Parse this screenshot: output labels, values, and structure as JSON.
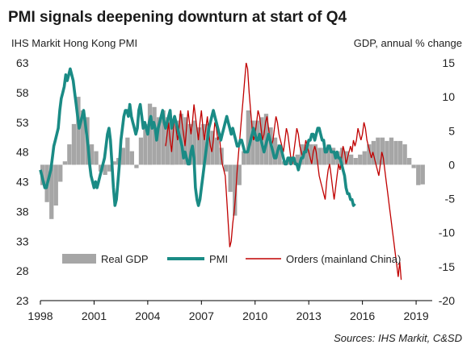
{
  "chart_data": {
    "type": "line",
    "title": "PMI signals deepening downturn at start of Q4",
    "left_axis_label": "IHS Markit Hong Kong PMI",
    "right_axis_label": "GDP, annual % change",
    "source": "Sources:  IHS Markit, C&SD",
    "y_left": {
      "min": 23,
      "max": 63,
      "ticks": [
        "23",
        "28",
        "33",
        "38",
        "43",
        "48",
        "53",
        "58",
        "63"
      ]
    },
    "y_right": {
      "min": -20,
      "max": 15,
      "ticks": [
        "-20",
        "-15",
        "-10",
        "-5",
        "0",
        "5",
        "10",
        "15"
      ]
    },
    "x_ticks": [
      "1998",
      "2001",
      "2004",
      "2007",
      "2010",
      "2013",
      "2016",
      "2019"
    ],
    "x_range": [
      1998.0,
      2019.9
    ],
    "legend": [
      {
        "name": "Real GDP",
        "color": "#a6a6a6"
      },
      {
        "name": "PMI",
        "color": "#1a8b85"
      },
      {
        "name": "Orders (mainland China)",
        "color": "#c00000"
      }
    ],
    "gdp_quarterly_yoy": {
      "start": 1998.0,
      "step": 0.25,
      "values": [
        -3,
        -5.5,
        -8,
        -6,
        -2.5,
        0.5,
        3,
        6,
        10,
        8,
        7,
        3,
        2,
        -1,
        -1.5,
        -1,
        0.5,
        1,
        2.5,
        4,
        2,
        -0.5,
        4,
        6,
        9,
        8.5,
        7,
        8,
        7,
        6,
        6.5,
        7.5,
        7,
        6,
        6.5,
        5.5,
        6,
        6,
        5,
        4,
        2.5,
        -1,
        -4,
        -7.5,
        -3,
        2,
        8,
        6.5,
        6.5,
        7,
        7.5,
        5.5,
        4,
        3,
        0.5,
        1,
        1,
        1.5,
        3,
        3,
        3,
        3,
        2.5,
        2.5,
        3,
        2.5,
        2,
        2.5,
        2,
        1.5,
        1,
        1.5,
        2,
        3,
        3.5,
        4,
        4,
        3.5,
        4,
        3.5,
        3.5,
        3,
        1,
        -0.5,
        -3,
        -2.9
      ]
    },
    "pmi_monthly": {
      "start": 1998.0,
      "step": 0.08333,
      "values": [
        45,
        44,
        43,
        42,
        42,
        43,
        44,
        45,
        47,
        49,
        50,
        51,
        52,
        55,
        57,
        58,
        59,
        61,
        60,
        61,
        62,
        61,
        60,
        58,
        56,
        54,
        52,
        53,
        54,
        55,
        53,
        51,
        49,
        46,
        44,
        43,
        42,
        43,
        42,
        43,
        44,
        45,
        46,
        47,
        49,
        51,
        52,
        50,
        46,
        42,
        39,
        40,
        43,
        46,
        50,
        52,
        54,
        55,
        55,
        54,
        56,
        54,
        53,
        52,
        51,
        52,
        55,
        56,
        54,
        52,
        53,
        52,
        51,
        53,
        54,
        52,
        53,
        52,
        50,
        52,
        53,
        54,
        55,
        53,
        52,
        53,
        54,
        55,
        52,
        53,
        54,
        53,
        52,
        51,
        50,
        49,
        47,
        48,
        47,
        46,
        46,
        48,
        49,
        47,
        42,
        40,
        39,
        40,
        42,
        44,
        46,
        48,
        50,
        52,
        53,
        54,
        55,
        54,
        53,
        52,
        51,
        50,
        51,
        52,
        53,
        54,
        53,
        52,
        51,
        52,
        51,
        50,
        49,
        49,
        50,
        50,
        49,
        48,
        48,
        48,
        49,
        50,
        51,
        52,
        51,
        50,
        50,
        51,
        50,
        49,
        48,
        49,
        50,
        51,
        50,
        49,
        48,
        47,
        47,
        48,
        49,
        49,
        48,
        47,
        46,
        46,
        47,
        47,
        46,
        47,
        47,
        46,
        46,
        45,
        46,
        47,
        47,
        48,
        48,
        49,
        50,
        50,
        51,
        51,
        50,
        51,
        52,
        52,
        51,
        50,
        50,
        48,
        48,
        49,
        49,
        48,
        48,
        48,
        47,
        48,
        47,
        47,
        46,
        45,
        44,
        42,
        41,
        41,
        40,
        40,
        39,
        39.3
      ]
    },
    "orders_monthly": {
      "start": 2005.0,
      "step": 0.08333,
      "values": [
        49,
        51,
        53,
        50,
        48,
        51,
        54,
        52,
        50,
        52,
        55,
        53,
        51,
        49,
        52,
        55,
        53,
        51,
        53,
        56,
        54,
        52,
        50,
        53,
        55,
        52,
        50,
        52,
        54,
        51,
        49,
        48,
        50,
        53,
        52,
        50,
        51,
        48,
        46,
        45,
        44,
        40,
        36,
        32,
        33,
        36,
        38,
        41,
        45,
        48,
        51,
        54,
        57,
        60,
        63,
        62,
        58,
        55,
        52,
        50,
        51,
        53,
        55,
        54,
        52,
        50,
        51,
        53,
        54,
        52,
        50,
        49,
        50,
        52,
        54,
        53,
        51,
        50,
        49,
        48,
        50,
        52,
        51,
        49,
        47,
        46,
        48,
        50,
        52,
        51,
        49,
        48,
        47,
        48,
        50,
        49,
        48,
        47,
        46,
        48,
        49,
        48,
        46,
        44,
        43,
        42,
        41,
        40,
        43,
        45,
        46,
        44,
        42,
        40,
        42,
        44,
        46,
        45,
        47,
        49,
        48,
        46,
        47,
        48,
        49,
        48,
        50,
        49,
        50,
        52,
        51,
        50,
        51,
        53,
        52,
        50,
        49,
        48,
        47,
        48,
        47,
        46,
        45,
        44,
        46,
        48,
        47,
        45,
        43,
        41,
        39,
        37,
        35,
        33,
        31,
        29,
        27,
        29.5,
        26.5
      ]
    }
  }
}
